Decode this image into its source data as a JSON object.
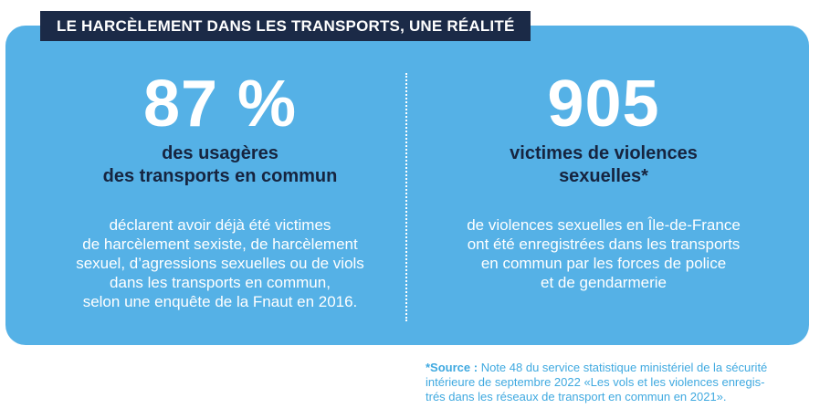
{
  "title": "LE HARCÈLEMENT DANS LES TRANSPORTS, UNE RÉALITÉ",
  "left": {
    "big_number": "87 %",
    "subtitle": [
      "des usagères",
      "des transports en commun"
    ],
    "description": [
      "déclarent avoir déjà été victimes",
      "de harcèlement sexiste, de harcèlement",
      "sexuel, d’agressions sexuelles ou de viols",
      "dans les transports en commun,",
      "selon une enquête de la Fnaut en 2016."
    ]
  },
  "right": {
    "big_number": "905",
    "subtitle": [
      "victimes de violences",
      "sexuelles*"
    ],
    "description": [
      "de violences sexuelles en Île-de-France",
      "ont été enregistrées dans les transports",
      "en commun par les forces de police",
      "et de gendarmerie"
    ]
  },
  "source": {
    "label": "*Source :",
    "lines": [
      " Note 48 du service statistique ministériel de la sécurité",
      "intérieure de septembre 2022 «Les vols et les violences enregis-",
      "trés dans les réseaux de transport en commun en 2021»."
    ]
  },
  "colors": {
    "card": "#55b1e6",
    "title_bar": "#1b2a47",
    "subtitle_text": "#16243f",
    "source_text": "#3fa9e0"
  }
}
